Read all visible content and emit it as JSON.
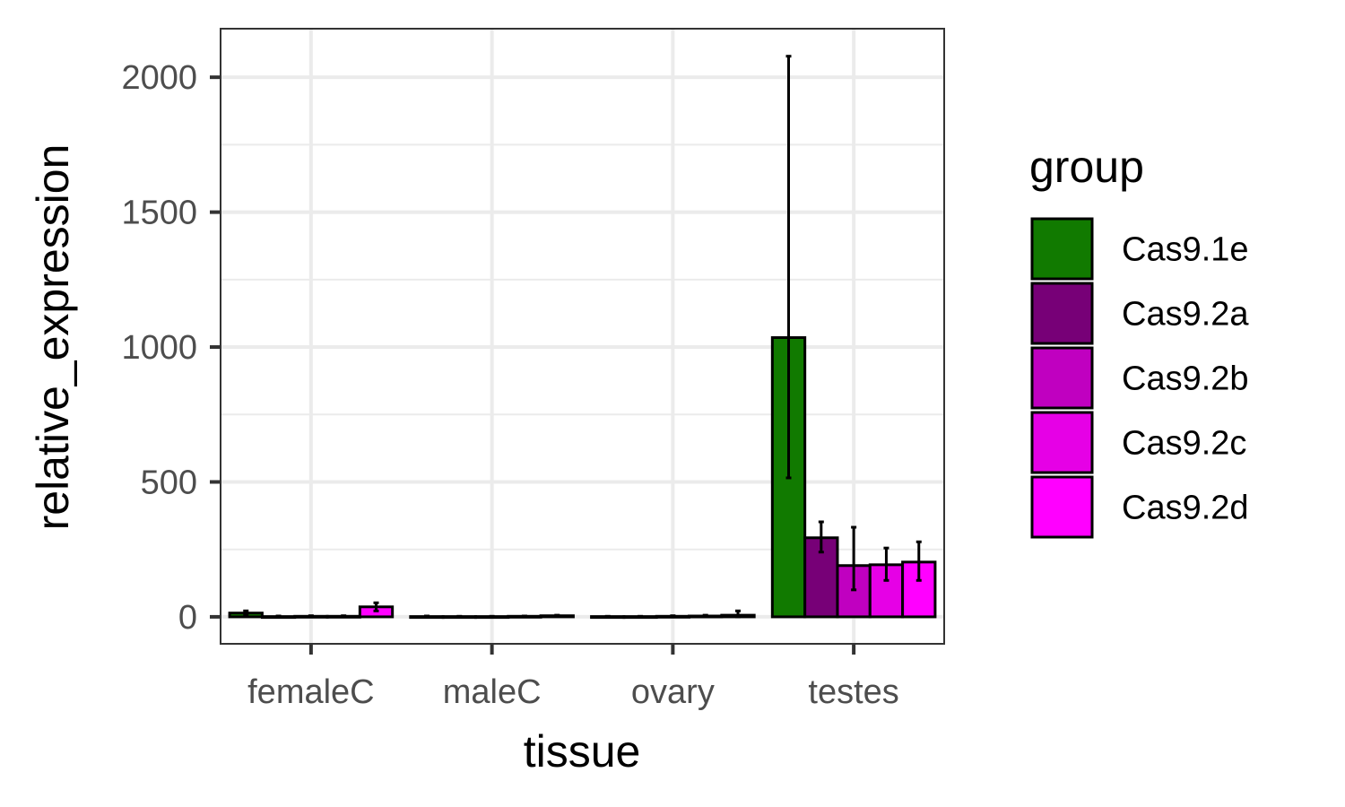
{
  "chart_data": {
    "type": "bar",
    "xlabel": "tissue",
    "ylabel": "relative_expression",
    "categories": [
      "femaleC",
      "maleC",
      "ovary",
      "testes"
    ],
    "ylim": [
      -100,
      2180
    ],
    "yticks": [
      0,
      500,
      1000,
      1500,
      2000
    ],
    "ytick_labels": [
      "0",
      "500",
      "1000",
      "1500",
      "2000"
    ],
    "grid": true,
    "legend": {
      "title": "group",
      "position": "right"
    },
    "series": [
      {
        "name": "Cas9.1e",
        "color": "#117A00",
        "values": [
          14,
          1,
          1,
          1035
        ],
        "err_low": [
          6,
          1,
          1,
          515
        ],
        "err_high": [
          22,
          3,
          2,
          2078
        ]
      },
      {
        "name": "Cas9.2a",
        "color": "#770077",
        "values": [
          1,
          1,
          1,
          293
        ],
        "err_low": [
          0,
          0,
          0,
          240
        ],
        "err_high": [
          3,
          2,
          2,
          352
        ]
      },
      {
        "name": "Cas9.2b",
        "color": "#C000C0",
        "values": [
          2,
          1,
          2,
          190
        ],
        "err_low": [
          1,
          0,
          1,
          100
        ],
        "err_high": [
          4,
          2,
          4,
          332
        ]
      },
      {
        "name": "Cas9.2c",
        "color": "#E600E6",
        "values": [
          2,
          2,
          3,
          193
        ],
        "err_low": [
          1,
          1,
          1,
          135
        ],
        "err_high": [
          4,
          3,
          6,
          255
        ]
      },
      {
        "name": "Cas9.2d",
        "color": "#FF00FF",
        "values": [
          37,
          4,
          6,
          203
        ],
        "err_low": [
          22,
          2,
          0,
          135
        ],
        "err_high": [
          52,
          6,
          22,
          278
        ]
      }
    ]
  }
}
